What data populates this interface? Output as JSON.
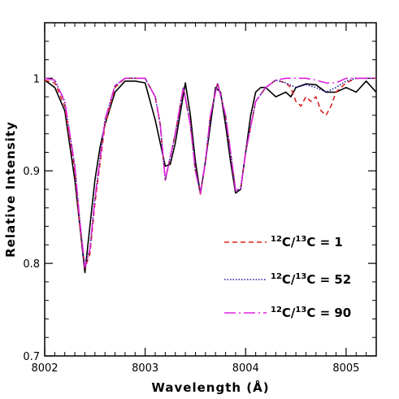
{
  "chart_data": {
    "type": "line",
    "title": "",
    "xlabel": "Wavelength (Å)",
    "ylabel": "Relative Intensity",
    "xlim": [
      8002,
      8005.3
    ],
    "ylim": [
      0.7,
      1.06
    ],
    "xticks": [
      8002,
      8003,
      8004,
      8005
    ],
    "xtick_labels": [
      "8002",
      "8003",
      "8004",
      "8005"
    ],
    "yticks": [
      0.7,
      0.8,
      0.9,
      1.0
    ],
    "ytick_labels": [
      "0.7",
      "0.8",
      "0.9",
      "1"
    ],
    "grid": false,
    "legend_position": "bottom-right",
    "series": [
      {
        "name": "",
        "color": "#000000",
        "style": "solid",
        "x": [
          8002.0,
          8002.1,
          8002.2,
          8002.3,
          8002.35,
          8002.4,
          8002.45,
          8002.5,
          8002.55,
          8002.6,
          8002.7,
          8002.8,
          8002.9,
          8003.0,
          8003.1,
          8003.15,
          8003.2,
          8003.25,
          8003.3,
          8003.4,
          8003.45,
          8003.5,
          8003.55,
          8003.6,
          8003.7,
          8003.75,
          8003.8,
          8003.85,
          8003.9,
          8003.95,
          8004.0,
          8004.05,
          8004.1,
          8004.15,
          8004.2,
          8004.3,
          8004.4,
          8004.45,
          8004.5,
          8004.6,
          8004.7,
          8004.8,
          8004.9,
          8005.0,
          8005.1,
          8005.2,
          8005.3
        ],
        "y": [
          0.998,
          0.99,
          0.965,
          0.89,
          0.84,
          0.79,
          0.84,
          0.89,
          0.925,
          0.95,
          0.985,
          0.997,
          0.997,
          0.995,
          0.955,
          0.93,
          0.905,
          0.907,
          0.93,
          0.995,
          0.96,
          0.91,
          0.875,
          0.91,
          0.99,
          0.985,
          0.95,
          0.91,
          0.876,
          0.88,
          0.92,
          0.96,
          0.985,
          0.99,
          0.99,
          0.98,
          0.985,
          0.98,
          0.99,
          0.994,
          0.993,
          0.985,
          0.985,
          0.99,
          0.985,
          0.997,
          0.985
        ]
      },
      {
        "name": "¹²C/¹³C = 1",
        "color": "#dd2222",
        "style": "dashed",
        "x": [
          8002.0,
          8002.1,
          8002.2,
          8002.3,
          8002.35,
          8002.4,
          8002.45,
          8002.5,
          8002.6,
          8002.7,
          8002.8,
          8002.9,
          8003.0,
          8003.1,
          8003.15,
          8003.2,
          8003.3,
          8003.38,
          8003.45,
          8003.5,
          8003.55,
          8003.6,
          8003.65,
          8003.72,
          8003.8,
          8003.85,
          8003.9,
          8003.95,
          8004.0,
          8004.1,
          8004.2,
          8004.3,
          8004.4,
          8004.45,
          8004.5,
          8004.55,
          8004.6,
          8004.65,
          8004.7,
          8004.75,
          8004.8,
          8004.85,
          8004.9,
          8005.0,
          8005.1,
          8005.2,
          8005.3
        ],
        "y": [
          0.998,
          0.995,
          0.97,
          0.9,
          0.84,
          0.795,
          0.81,
          0.865,
          0.95,
          0.99,
          1.0,
          1.0,
          1.0,
          0.98,
          0.95,
          0.89,
          0.94,
          0.99,
          0.95,
          0.9,
          0.875,
          0.91,
          0.96,
          0.995,
          0.96,
          0.92,
          0.879,
          0.88,
          0.92,
          0.975,
          0.99,
          0.998,
          0.995,
          0.99,
          0.975,
          0.97,
          0.98,
          0.975,
          0.98,
          0.965,
          0.96,
          0.97,
          0.985,
          0.995,
          1.0,
          1.0,
          1.0
        ]
      },
      {
        "name": "¹²C/¹³C = 52",
        "color": "#1a1aa0",
        "style": "dotted",
        "x": [
          8002.0,
          8002.1,
          8002.2,
          8002.3,
          8002.35,
          8002.4,
          8002.45,
          8002.5,
          8002.6,
          8002.7,
          8002.8,
          8002.9,
          8003.0,
          8003.1,
          8003.15,
          8003.2,
          8003.3,
          8003.38,
          8003.45,
          8003.5,
          8003.55,
          8003.6,
          8003.65,
          8003.72,
          8003.8,
          8003.85,
          8003.9,
          8003.95,
          8004.0,
          8004.1,
          8004.2,
          8004.3,
          8004.4,
          8004.5,
          8004.6,
          8004.7,
          8004.8,
          8004.9,
          8005.0,
          8005.1,
          8005.2,
          8005.3
        ],
        "y": [
          1.0,
          0.998,
          0.975,
          0.905,
          0.845,
          0.796,
          0.815,
          0.87,
          0.955,
          0.992,
          1.0,
          1.0,
          1.0,
          0.98,
          0.95,
          0.89,
          0.94,
          0.99,
          0.95,
          0.9,
          0.876,
          0.91,
          0.96,
          0.995,
          0.96,
          0.92,
          0.879,
          0.88,
          0.92,
          0.975,
          0.99,
          0.998,
          0.995,
          0.99,
          0.993,
          0.99,
          0.985,
          0.99,
          0.997,
          1.0,
          1.0,
          1.0
        ]
      },
      {
        "name": "¹²C/¹³C = 90",
        "color": "#dd22dd",
        "style": "longdash",
        "x": [
          8002.0,
          8002.1,
          8002.2,
          8002.3,
          8002.35,
          8002.4,
          8002.45,
          8002.5,
          8002.6,
          8002.7,
          8002.8,
          8002.9,
          8003.0,
          8003.1,
          8003.15,
          8003.2,
          8003.3,
          8003.38,
          8003.45,
          8003.5,
          8003.55,
          8003.6,
          8003.65,
          8003.72,
          8003.8,
          8003.85,
          8003.9,
          8003.95,
          8004.0,
          8004.1,
          8004.2,
          8004.3,
          8004.4,
          8004.5,
          8004.6,
          8004.7,
          8004.8,
          8004.9,
          8005.0,
          8005.1,
          8005.2,
          8005.3
        ],
        "y": [
          1.0,
          0.998,
          0.975,
          0.905,
          0.845,
          0.796,
          0.815,
          0.87,
          0.955,
          0.992,
          1.0,
          1.0,
          1.0,
          0.98,
          0.95,
          0.89,
          0.94,
          0.99,
          0.95,
          0.9,
          0.876,
          0.91,
          0.96,
          0.995,
          0.96,
          0.92,
          0.879,
          0.88,
          0.92,
          0.975,
          0.99,
          0.998,
          1.0,
          1.0,
          1.0,
          0.998,
          0.995,
          0.995,
          1.0,
          1.0,
          1.0,
          1.0
        ]
      }
    ],
    "legend": [
      {
        "series_index": 1,
        "iso_a": "12",
        "el_a": "C/",
        "iso_b": "13",
        "el_b": "C",
        "value_text": " = 1"
      },
      {
        "series_index": 2,
        "iso_a": "12",
        "el_a": "C/",
        "iso_b": "13",
        "el_b": "C",
        "value_text": " = 52"
      },
      {
        "series_index": 3,
        "iso_a": "12",
        "el_a": "C/",
        "iso_b": "13",
        "el_b": "C",
        "value_text": " = 90"
      }
    ]
  }
}
